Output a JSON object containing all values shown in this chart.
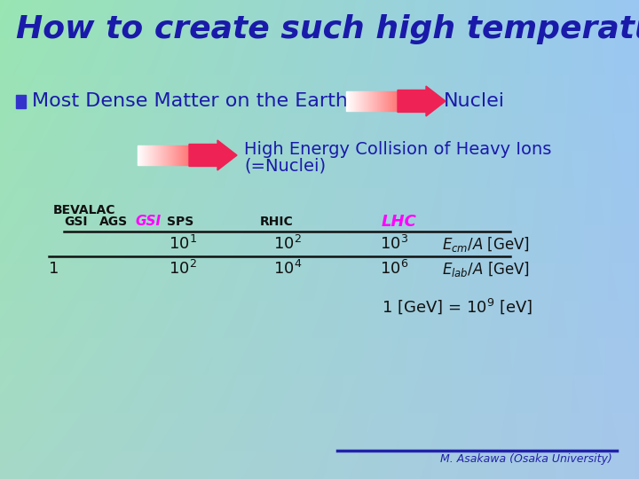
{
  "title": "How to create such high temperature",
  "title_color": "#1a1aaa",
  "dense_matter": "Most Dense Matter on the Earth",
  "nuclei": "Nuclei",
  "high_energy_line1": "High Energy Collision of Heavy Ions",
  "high_energy_line2": "(=Nuclei)",
  "credit": "M. Asakawa (Osaka University)",
  "dark_blue": "#1a1aaa",
  "magenta": "#FF00FF",
  "black": "#111111",
  "bg_tl": [
    0.6,
    0.9,
    0.7
  ],
  "bg_tr": [
    0.6,
    0.78,
    0.95
  ],
  "bg_bl": [
    0.65,
    0.85,
    0.78
  ],
  "bg_br": [
    0.65,
    0.78,
    0.92
  ]
}
